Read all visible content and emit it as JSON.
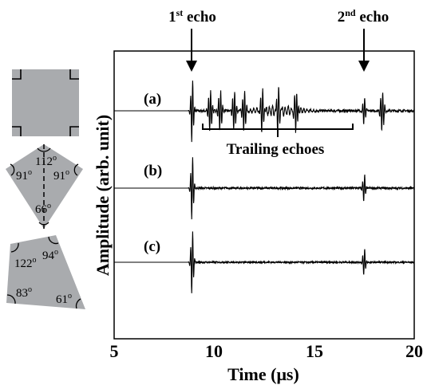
{
  "chart_data": {
    "type": "line",
    "xlabel": "Time (μs)",
    "ylabel": "Amplitude (arb. unit)",
    "xlim": [
      5,
      20
    ],
    "xticks": [
      "5",
      "10",
      "15",
      "20"
    ],
    "grid": false,
    "series": [
      {
        "name": "(a)",
        "echo_times_us": [
          8.9,
          17.5
        ],
        "trailing_echo_times_us": [
          9.8,
          10.3,
          11.0,
          11.5,
          12.4,
          13.2,
          14.1,
          18.4
        ],
        "noise_level": 0.2
      },
      {
        "name": "(b)",
        "echo_times_us": [
          8.9,
          17.5
        ],
        "trailing_echo_times_us": [],
        "noise_level": 0.15
      },
      {
        "name": "(c)",
        "echo_times_us": [
          8.9,
          17.5
        ],
        "trailing_echo_times_us": [],
        "noise_level": 0.12
      }
    ],
    "annotations": [
      {
        "text": "1",
        "sup": "st",
        "rest": " echo",
        "x_us": 8.8
      },
      {
        "text": "2",
        "sup": "nd",
        "rest": " echo",
        "x_us": 17.5
      },
      {
        "text": "Trailing echoes",
        "x_start_us": 9.4,
        "x_end_us": 17.0
      }
    ]
  },
  "shapes": [
    {
      "name": "square",
      "angles": []
    },
    {
      "name": "kite",
      "angles": [
        "112",
        "91",
        "91",
        "66"
      ],
      "degree_mark": "o"
    },
    {
      "name": "quadrilateral",
      "angles": [
        "122",
        "94",
        "83",
        "61"
      ],
      "degree_mark": "o"
    }
  ]
}
